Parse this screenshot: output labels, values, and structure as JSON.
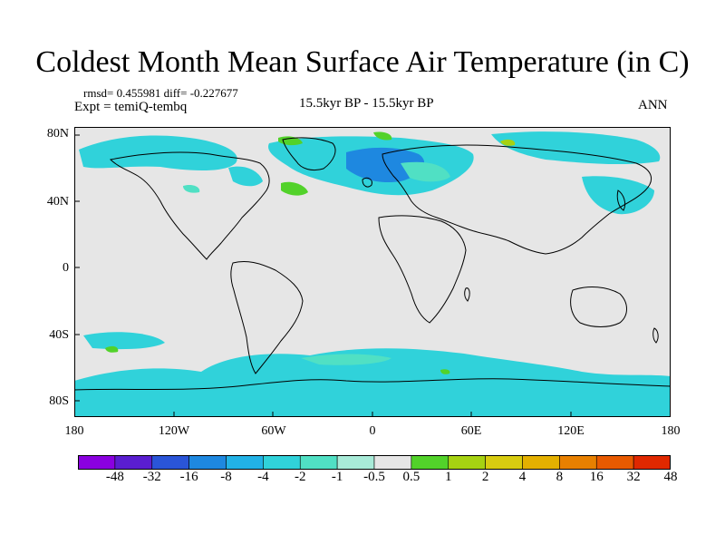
{
  "title": "Coldest Month Mean Surface Air Temperature (in C)",
  "stats": "rmsd= 0.455981 diff= -0.227677",
  "expt": "Expt = temiQ-tembq",
  "period": "15.5kyr BP - 15.5kyr BP",
  "ann": "ANN",
  "lat_ticks": [
    "80N",
    "40N",
    "0",
    "40S",
    "80S"
  ],
  "lon_ticks": [
    "180",
    "120W",
    "60W",
    "0",
    "60E",
    "120E",
    "180"
  ],
  "colorbar": {
    "labels": [
      "-48",
      "-32",
      "-16",
      "-8",
      "-4",
      "-2",
      "-1",
      "-0.5",
      "0.5",
      "1",
      "2",
      "4",
      "8",
      "16",
      "32",
      "48"
    ],
    "colors": [
      "#8a00e0",
      "#5a1ed0",
      "#2a55d8",
      "#1e88e0",
      "#22b2e6",
      "#30d2da",
      "#50e0c4",
      "#a8ebd8",
      "#e6e6e6",
      "#52d22a",
      "#a6d212",
      "#d8cc10",
      "#e4b000",
      "#e88000",
      "#e85a00",
      "#e02800"
    ]
  },
  "map_colors": {
    "background": "#e6e6e6",
    "light_cyan": "#30d2da",
    "mint": "#50e0c4",
    "blue": "#1e88e0",
    "green": "#52d22a",
    "yellow_green": "#a6d212"
  }
}
